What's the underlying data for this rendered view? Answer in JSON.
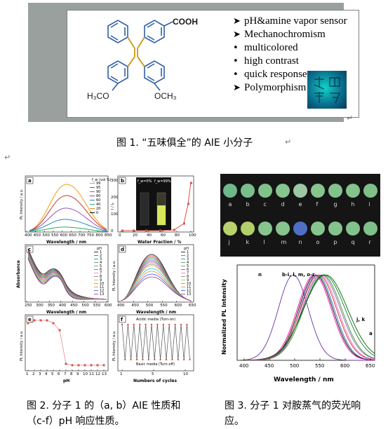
{
  "figure1": {
    "cooh_label": "COOH",
    "left_methoxy": "H₃CO",
    "right_methoxy": "OCH₃",
    "features": [
      {
        "marker": "➤",
        "text": "pH&amine vapor sensor"
      },
      {
        "marker": "➤",
        "text": "Mechanochromism"
      },
      {
        "marker": "•",
        "text": "multicolored"
      },
      {
        "marker": "•",
        "text": "high contrast"
      },
      {
        "marker": "•",
        "text": "quick response"
      },
      {
        "marker": "➤",
        "text": "Polymorphism"
      }
    ],
    "seal_text": "",
    "caption": "图 1. “五味俱全”的 AIE 小分子"
  },
  "figure2": {
    "caption_line1": "图 2. 分子 1 的（a, b）AIE 性质和",
    "caption_line2": "（c-f）pH 响应性质。",
    "panel_a": {
      "label": "a",
      "ylabel": "PL Intensity / a.u.",
      "xlabel": "Wavelength / nm",
      "xticks": [
        "400",
        "450",
        "500",
        "550",
        "600",
        "650",
        "700",
        "750",
        "800",
        "850"
      ],
      "legend_title": "f_w (vol %)",
      "legend": [
        "99",
        "95",
        "90",
        "80",
        "60",
        "40",
        "20",
        "0"
      ],
      "colors": [
        "#f39c12",
        "#c0392b",
        "#9b59b6",
        "#8e44ad",
        "#2980b9",
        "#27ae60",
        "#e67e22",
        "#000000"
      ]
    },
    "panel_b": {
      "label": "b",
      "ylabel": "I / I₀",
      "xlabel": "Water Fraction / %",
      "xticks": [
        "0",
        "20",
        "40",
        "60",
        "80",
        "100"
      ],
      "yticks": [
        "0",
        "100",
        "200",
        "300"
      ],
      "inset_left": "f_w=0%",
      "inset_right": "f_w=99%"
    },
    "panel_c": {
      "label": "c",
      "ylabel": "Absorbance",
      "xlabel": "Wavelength / nm",
      "xticks": [
        "250",
        "300",
        "350",
        "400",
        "450",
        "500",
        "550",
        "600"
      ],
      "legend_title": "pH",
      "legend": [
        "1",
        "2",
        "3",
        "4",
        "5",
        "6",
        "7",
        "8",
        "9",
        "10",
        "11",
        "12",
        "13"
      ]
    },
    "panel_d": {
      "label": "d",
      "ylabel": "PL Intensity / a.u.",
      "xlabel": "Wavelength / nm",
      "xticks": [
        "400",
        "450",
        "500",
        "550",
        "600",
        "650"
      ],
      "legend_title": "pH",
      "legend": [
        "1",
        "2",
        "3",
        "4",
        "5",
        "6",
        "7",
        "8",
        "9",
        "10",
        "11",
        "12",
        "13"
      ]
    },
    "panel_e": {
      "label": "e",
      "ylabel": "PL Intensity / a.u.",
      "xlabel": "pH",
      "xticks": [
        "1",
        "2",
        "3",
        "4",
        "5",
        "6",
        "7",
        "8",
        "9",
        "10",
        "11",
        "12",
        "13"
      ]
    },
    "panel_f": {
      "label": "f",
      "ylabel": "PL Intensity / a.u.",
      "xlabel": "Numbers of cycles",
      "xticks": [
        "1",
        "5",
        "10"
      ],
      "top_note": "Acidic media (Turn-on)",
      "bottom_note": "Basic media (Turn-off)"
    }
  },
  "figure3": {
    "caption_line1": "图 3. 分子 1 对胺蒸气的荧光响",
    "caption_line2": "应。",
    "dots_row1": [
      "a",
      "b",
      "c",
      "d",
      "e",
      "f",
      "g",
      "h",
      "i"
    ],
    "dots_row2": [
      "j",
      "k",
      "l",
      "m",
      "n",
      "o",
      "p",
      "q",
      "r"
    ],
    "ylabel": "Normalized PL Intensity",
    "xlabel": "Wavelength / nm",
    "xticks": [
      "400",
      "450",
      "500",
      "550",
      "600",
      "650"
    ],
    "label_n": "n",
    "label_b": "b-i, l, m, o-r",
    "label_jk": "j, k",
    "label_a": "a"
  }
}
